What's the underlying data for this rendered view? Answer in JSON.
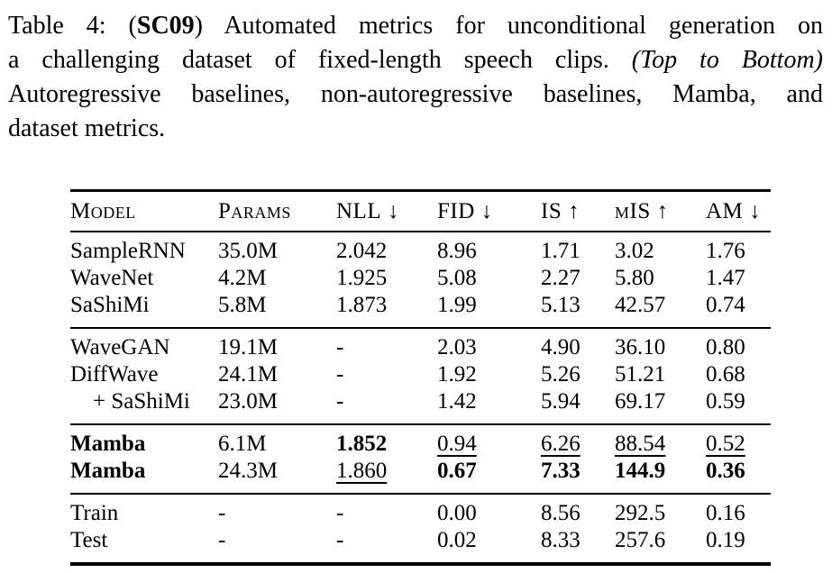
{
  "caption": {
    "line1_prefix": "Table 4: (",
    "line1_bold": "SC09",
    "line1_suffix": ") Automated metrics for unconditional generation on",
    "line2_prefix": "a challenging dataset of fixed-length speech clips. ",
    "line2_italic": "(Top to Bottom)",
    "line2_suffix": "",
    "line3": "Autoregressive baselines, non-autoregressive baselines, Mamba, and",
    "line4": "dataset metrics."
  },
  "table": {
    "columns": [
      {
        "label": "Model",
        "arrow": ""
      },
      {
        "label": "Params",
        "arrow": ""
      },
      {
        "label": "NLL",
        "arrow": "↓"
      },
      {
        "label": "FID",
        "arrow": "↓"
      },
      {
        "label": "IS",
        "arrow": "↑"
      },
      {
        "label": "mIS",
        "arrow": "↑"
      },
      {
        "label": "AM",
        "arrow": "↓"
      }
    ],
    "groups": [
      {
        "name": "autoregressive-baselines",
        "rows": [
          {
            "model": "SampleRNN",
            "params": "35.0M",
            "nll": "2.042",
            "fid": "8.96",
            "is": "1.71",
            "mis": "3.02",
            "am": "1.76"
          },
          {
            "model": "WaveNet",
            "params": "4.2M",
            "nll": "1.925",
            "fid": "5.08",
            "is": "2.27",
            "mis": "5.80",
            "am": "1.47"
          },
          {
            "model": "SaShiMi",
            "params": "5.8M",
            "nll": "1.873",
            "fid": "1.99",
            "is": "5.13",
            "mis": "42.57",
            "am": "0.74"
          }
        ]
      },
      {
        "name": "non-autoregressive-baselines",
        "rows": [
          {
            "model": "WaveGAN",
            "params": "19.1M",
            "nll": "-",
            "fid": "2.03",
            "is": "4.90",
            "mis": "36.10",
            "am": "0.80"
          },
          {
            "model": "DiffWave",
            "params": "24.1M",
            "nll": "-",
            "fid": "1.92",
            "is": "5.26",
            "mis": "51.21",
            "am": "0.68"
          },
          {
            "model": "+ SaShiMi",
            "params": "23.0M",
            "nll": "-",
            "fid": "1.42",
            "is": "5.94",
            "mis": "69.17",
            "am": "0.59"
          }
        ]
      },
      {
        "name": "mamba",
        "rows": [
          {
            "model": "Mamba",
            "params": "6.1M",
            "nll": "1.852",
            "fid": "0.94",
            "is": "6.26",
            "mis": "88.54",
            "am": "0.52"
          },
          {
            "model": "Mamba",
            "params": "24.3M",
            "nll": "1.860",
            "fid": "0.67",
            "is": "7.33",
            "mis": "144.9",
            "am": "0.36"
          }
        ]
      },
      {
        "name": "dataset-metrics",
        "rows": [
          {
            "model": "Train",
            "params": "-",
            "nll": "-",
            "fid": "0.00",
            "is": "8.56",
            "mis": "292.5",
            "am": "0.16"
          },
          {
            "model": "Test",
            "params": "-",
            "nll": "-",
            "fid": "0.02",
            "is": "8.33",
            "mis": "257.6",
            "am": "0.19"
          }
        ]
      }
    ]
  },
  "colors": {
    "text": "#000000",
    "background": "#ffffff",
    "rule": "#000000"
  }
}
